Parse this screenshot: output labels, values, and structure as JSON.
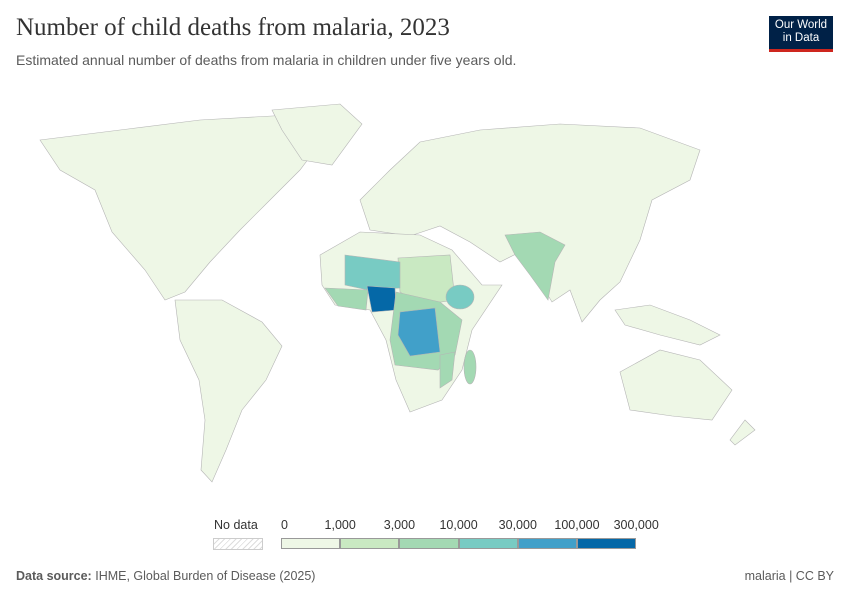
{
  "header": {
    "title": "Number of child deaths from malaria, 2023",
    "subtitle": "Estimated annual number of deaths from malaria in children under five years old.",
    "logo": "Our World in Data"
  },
  "legend": {
    "no_data": "No data",
    "bins": [
      "0",
      "1,000",
      "3,000",
      "10,000",
      "30,000",
      "100,000",
      "300,000"
    ],
    "colors": [
      "#eef7e6",
      "#c9e9c2",
      "#a3d9b3",
      "#78cbc3",
      "#41a0c9",
      "#0568a7"
    ],
    "no_data_pattern": "hatched-gray"
  },
  "footer": {
    "source_label": "Data source:",
    "source": "IHME, Global Burden of Disease (2025)",
    "right": "malaria | CC BY"
  }
}
